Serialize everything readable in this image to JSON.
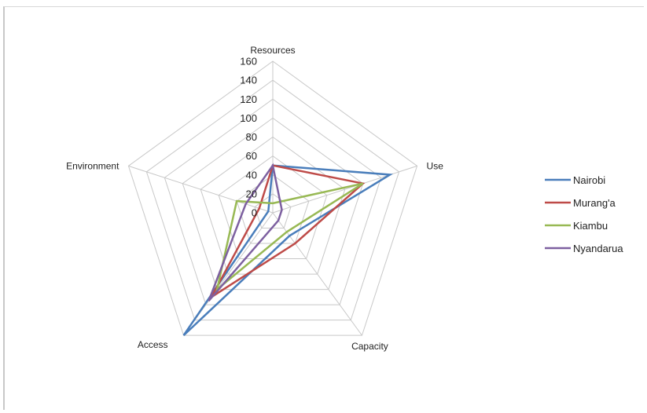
{
  "chart_data": {
    "type": "radar",
    "axes": [
      "Resources",
      "Use",
      "Capacity",
      "Access",
      "Environment"
    ],
    "ticks": [
      0,
      20,
      40,
      60,
      80,
      100,
      120,
      140,
      160
    ],
    "rlim": [
      0,
      160
    ],
    "legend_position": "right",
    "series": [
      {
        "name": "Nairobi",
        "color": "#4a7ebb",
        "values": [
          50,
          130,
          30,
          160,
          5
        ]
      },
      {
        "name": "Murang'a",
        "color": "#be4b48",
        "values": [
          50,
          100,
          40,
          110,
          15
        ]
      },
      {
        "name": "Kiambu",
        "color": "#98b954",
        "values": [
          10,
          100,
          25,
          100,
          40
        ]
      },
      {
        "name": "Nyandarua",
        "color": "#7d60a0",
        "values": [
          50,
          10,
          10,
          115,
          30
        ]
      }
    ]
  }
}
